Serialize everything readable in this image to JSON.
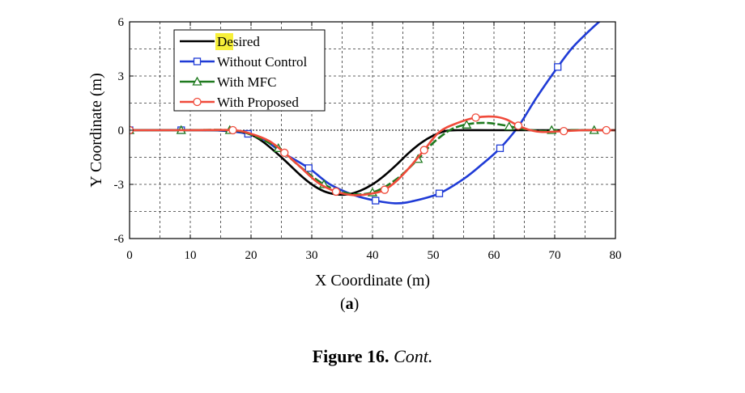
{
  "chart_data": {
    "type": "line",
    "xlabel": "X Coordinate (m)",
    "ylabel": "Y Coordinate (m)",
    "xlim": [
      0,
      80
    ],
    "ylim": [
      -6,
      6
    ],
    "xticks": [
      0,
      10,
      20,
      30,
      40,
      50,
      60,
      70,
      80
    ],
    "yticks": [
      -6,
      -3,
      0,
      3,
      6
    ],
    "grid": true,
    "legend_position": "top-left",
    "series": [
      {
        "name": "Desired",
        "color": "#000000",
        "marker": "none",
        "x": [
          0,
          10,
          15,
          18,
          20,
          22,
          25,
          28,
          30,
          32,
          34,
          36,
          38,
          40,
          42,
          44,
          46,
          48,
          50,
          52,
          54,
          60,
          70,
          80
        ],
        "y": [
          0,
          0,
          0,
          -0.05,
          -0.25,
          -0.65,
          -1.5,
          -2.45,
          -3.0,
          -3.38,
          -3.55,
          -3.55,
          -3.35,
          -3.0,
          -2.5,
          -1.9,
          -1.25,
          -0.7,
          -0.3,
          -0.05,
          0,
          0,
          0,
          0
        ]
      },
      {
        "name": "Without Control",
        "color": "#1f3bd6",
        "marker": "square",
        "x": [
          0,
          8.5,
          15,
          19.5,
          22,
          25,
          29.5,
          33,
          37,
          40.5,
          44,
          47,
          51,
          55,
          58,
          61,
          64,
          67,
          70.5,
          73,
          76,
          78
        ],
        "y": [
          0,
          0,
          -0.02,
          -0.2,
          -0.5,
          -1.2,
          -2.1,
          -3.0,
          -3.6,
          -3.9,
          -4.05,
          -3.9,
          -3.5,
          -2.7,
          -1.9,
          -1.0,
          0.2,
          1.8,
          3.5,
          4.6,
          5.6,
          6.2
        ],
        "marker_x": [
          0,
          8.5,
          19.5,
          29.5,
          40.5,
          51,
          61,
          70.5
        ],
        "marker_y": [
          0,
          0,
          -0.2,
          -2.1,
          -3.9,
          -3.5,
          -1.0,
          3.5
        ]
      },
      {
        "name": "With MFC",
        "color": "#1f7a1f",
        "marker": "triangle",
        "x": [
          0,
          8.5,
          16.5,
          20,
          24.5,
          28,
          32,
          36,
          40,
          44,
          47.5,
          50,
          53,
          56,
          59,
          62,
          65,
          68,
          70,
          75,
          80
        ],
        "y": [
          0,
          0,
          0,
          -0.25,
          -1.0,
          -2.0,
          -3.0,
          -3.5,
          -3.45,
          -2.7,
          -1.6,
          -0.7,
          0.05,
          0.35,
          0.4,
          0.25,
          0.05,
          -0.05,
          0,
          0,
          0
        ],
        "marker_x": [
          0,
          8.5,
          16.5,
          24.5,
          32,
          40,
          47.5,
          55.5,
          62.5,
          69.5,
          76.5
        ],
        "marker_y": [
          0,
          0,
          0,
          -1.0,
          -3.0,
          -3.45,
          -1.6,
          0.3,
          0.2,
          0,
          0
        ]
      },
      {
        "name": "With Proposed",
        "color": "#f04a3a",
        "marker": "circle",
        "x": [
          0,
          10,
          17,
          20,
          23,
          25.5,
          28,
          31,
          34,
          37,
          40,
          42,
          44,
          46,
          48.5,
          51,
          54,
          57,
          60,
          62,
          64,
          66,
          68,
          71.5,
          75,
          78.5,
          80
        ],
        "y": [
          0,
          0,
          0,
          -0.2,
          -0.6,
          -1.25,
          -2.0,
          -2.9,
          -3.4,
          -3.6,
          -3.5,
          -3.3,
          -2.8,
          -2.1,
          -1.1,
          -0.1,
          0.4,
          0.7,
          0.75,
          0.6,
          0.25,
          0.0,
          -0.1,
          -0.05,
          0,
          0,
          0
        ],
        "marker_x": [
          0,
          17,
          25.5,
          34,
          42,
          48.5,
          57,
          64,
          71.5,
          78.5
        ],
        "marker_y": [
          0,
          0,
          -1.25,
          -3.4,
          -3.3,
          -1.1,
          0.7,
          0.25,
          -0.05,
          0
        ]
      }
    ]
  },
  "panel_label": "a",
  "caption": {
    "figure": "Figure 16.",
    "text": "Cont."
  }
}
